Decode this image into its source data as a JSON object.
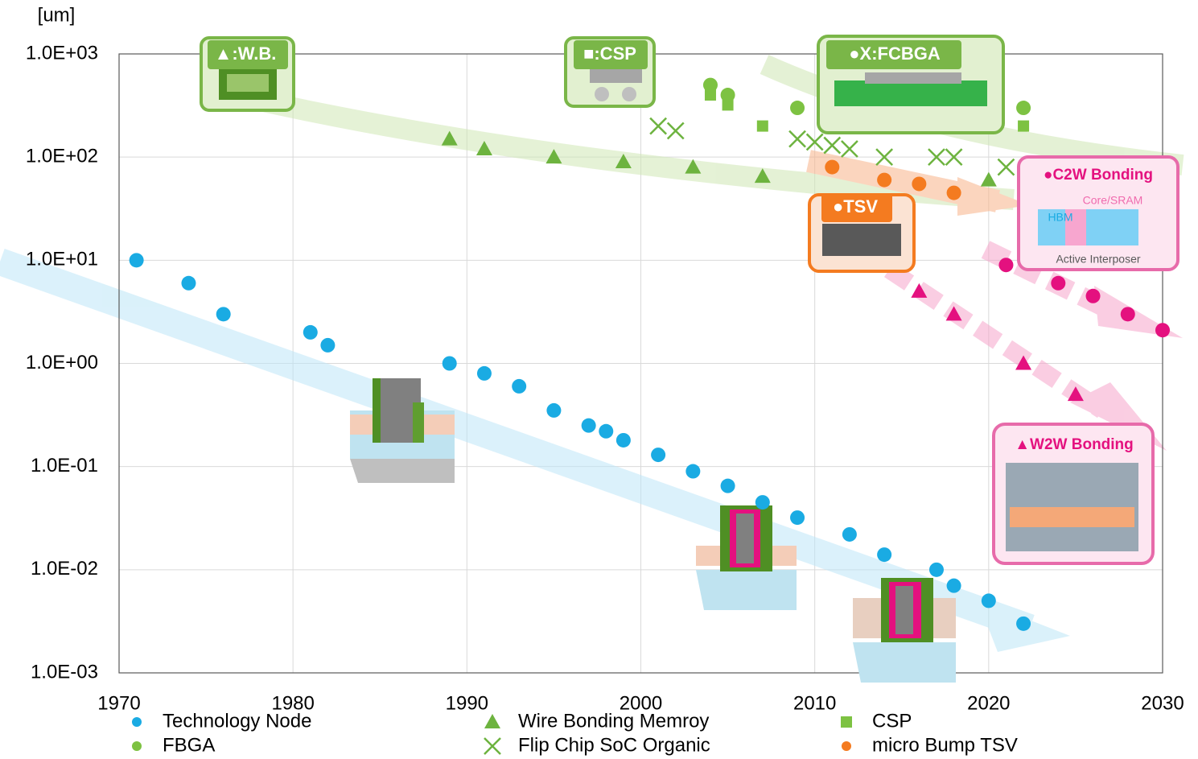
{
  "chart_data": {
    "type": "scatter",
    "y_label": "[um]",
    "log_y": true,
    "grid": true,
    "xlim": [
      1970,
      2030
    ],
    "xticks": [
      1970,
      1980,
      1990,
      2000,
      2010,
      2020,
      2030
    ],
    "ylim": [
      0.001,
      1000
    ],
    "yticks": [
      {
        "value": 0.001,
        "label": "1.0E-03"
      },
      {
        "value": 0.01,
        "label": "1.0E-02"
      },
      {
        "value": 0.1,
        "label": "1.0E-01"
      },
      {
        "value": 1,
        "label": "1.0E+00"
      },
      {
        "value": 10,
        "label": "1.0E+01"
      },
      {
        "value": 100,
        "label": "1.0E+02"
      },
      {
        "value": 1000,
        "label": "1.0E+03"
      }
    ],
    "legend": "bottom",
    "series": [
      {
        "name": "Technology Node",
        "color": "#1AABE3",
        "marker": "circle",
        "x": [
          1971,
          1974,
          1976,
          1981,
          1982,
          1989,
          1991,
          1993,
          1995,
          1997,
          1998,
          1999,
          2001,
          2003,
          2005,
          2007,
          2009,
          2012,
          2014,
          2017,
          2018,
          2020,
          2022
        ],
        "values": [
          10,
          6,
          3,
          2,
          1.5,
          1,
          0.8,
          0.6,
          0.35,
          0.25,
          0.22,
          0.18,
          0.13,
          0.09,
          0.065,
          0.045,
          0.032,
          0.022,
          0.014,
          0.01,
          0.007,
          0.005,
          0.003
        ]
      },
      {
        "name": "Wire Bonding Memroy",
        "color": "#6DB33F",
        "marker": "triangle",
        "x": [
          1989,
          1991,
          1995,
          1999,
          2003,
          2007,
          2020
        ],
        "values": [
          150,
          120,
          100,
          90,
          80,
          65,
          60
        ]
      },
      {
        "name": "CSP",
        "color": "#7DC242",
        "marker": "square",
        "x": [
          2004,
          2005,
          2007,
          2022
        ],
        "values": [
          400,
          320,
          200,
          200
        ]
      },
      {
        "name": "FBGA",
        "color": "#7DC242",
        "marker": "circle",
        "x": [
          2004,
          2005,
          2009,
          2022
        ],
        "values": [
          500,
          400,
          300,
          300
        ]
      },
      {
        "name": "Flip Chip SoC Organic",
        "color": "#6DB33F",
        "marker": "x",
        "x": [
          2001,
          2002,
          2009,
          2010,
          2011,
          2012,
          2014,
          2017,
          2018,
          2021
        ],
        "values": [
          200,
          180,
          150,
          140,
          130,
          120,
          100,
          100,
          100,
          80
        ]
      },
      {
        "name": "micro Bump TSV",
        "color": "#F47B20",
        "marker": "circle",
        "x": [
          2011,
          2014,
          2016,
          2018
        ],
        "values": [
          80,
          60,
          55,
          45
        ]
      },
      {
        "color": "#E4117F",
        "marker": "circle",
        "x": [
          2021,
          2024,
          2026,
          2028,
          2030
        ],
        "values": [
          9,
          6,
          4.5,
          3,
          2.1
        ]
      },
      {
        "color": "#E4117F",
        "marker": "triangle",
        "x": [
          2016,
          2018,
          2022,
          2025
        ],
        "values": [
          5,
          3,
          1,
          0.5
        ]
      }
    ],
    "annotations": [
      "▲:W.B.",
      "■:CSP",
      "●X:FCBGA",
      "●TSV",
      "●C2W Bonding",
      "Core/SRAM",
      "HBM",
      "Active Interposer",
      "▲W2W Bonding"
    ]
  }
}
